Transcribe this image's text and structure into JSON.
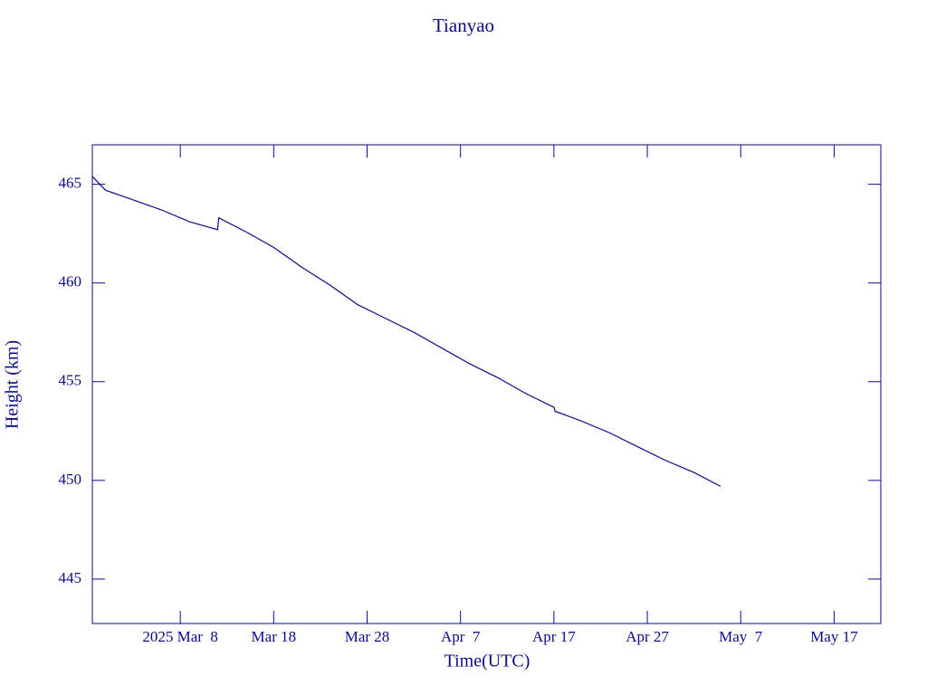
{
  "chart_data": {
    "type": "line",
    "title": "Tianyao",
    "xlabel": "Time(UTC)",
    "ylabel": "Height (km)",
    "color": "#0b0b8c",
    "x": [
      "2025-02-26T14:00",
      "2025-02-28T00:00",
      "2025-03-03T00:00",
      "2025-03-06T00:00",
      "2025-03-09T00:00",
      "2025-03-12T00:00",
      "2025-03-12T03:00",
      "2025-03-15T00:00",
      "2025-03-18T00:00",
      "2025-03-21T00:00",
      "2025-03-24T00:00",
      "2025-03-27T00:00",
      "2025-03-30T00:00",
      "2025-04-02T00:00",
      "2025-04-05T00:00",
      "2025-04-08T00:00",
      "2025-04-11T00:00",
      "2025-04-14T00:00",
      "2025-04-17T00:00",
      "2025-04-17T03:00",
      "2025-04-20T00:00",
      "2025-04-23T00:00",
      "2025-04-26T00:00",
      "2025-04-29T00:00",
      "2025-05-02T00:00",
      "2025-05-04T20:00"
    ],
    "values": [
      465.4,
      464.7,
      464.2,
      463.7,
      463.1,
      462.7,
      463.3,
      462.6,
      461.8,
      460.8,
      459.9,
      458.9,
      458.2,
      457.5,
      456.7,
      455.9,
      455.2,
      454.4,
      453.7,
      453.5,
      453.0,
      452.4,
      451.7,
      451.0,
      450.4,
      449.7
    ],
    "xlim": [
      "2025-02-26T14:00",
      "2025-05-22T00:00"
    ],
    "xticks": [
      {
        "value": "2025-03-08",
        "label": "2025 Mar  8"
      },
      {
        "value": "2025-03-18",
        "label": "Mar 18"
      },
      {
        "value": "2025-03-28",
        "label": "Mar 28"
      },
      {
        "value": "2025-04-07",
        "label": "Apr  7"
      },
      {
        "value": "2025-04-17",
        "label": "Apr 17"
      },
      {
        "value": "2025-04-27",
        "label": "Apr 27"
      },
      {
        "value": "2025-05-07",
        "label": "May  7"
      },
      {
        "value": "2025-05-17",
        "label": "May 17"
      }
    ],
    "ylim": [
      442.75,
      467.0
    ],
    "yticks": [
      445,
      450,
      455,
      460,
      465
    ]
  }
}
